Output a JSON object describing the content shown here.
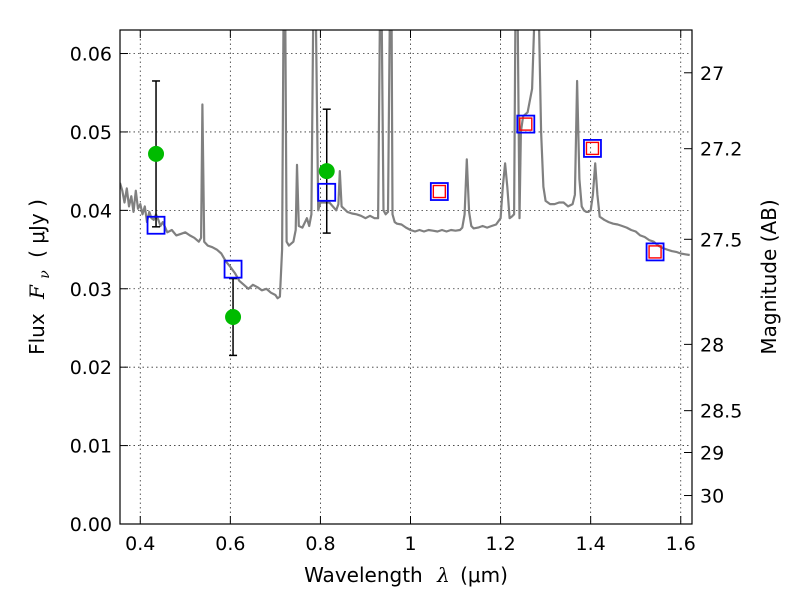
{
  "chart_data": {
    "type": "scatter",
    "xlabel_text": "Wavelength",
    "xlabel_symbol": "λ",
    "xlabel_unit": "(μm)",
    "ylabel_text": "Flux",
    "ylabel_symbol": "F",
    "ylabel_sub": "ν",
    "ylabel_unit": "( μJy )",
    "y2label": "Magnitude (AB)",
    "xlim": [
      0.355,
      1.625
    ],
    "ylim": [
      0.0,
      0.063
    ],
    "x_ticks": [
      0.4,
      0.6,
      0.8,
      1.0,
      1.2,
      1.4,
      1.6
    ],
    "x_tick_labels": [
      "0.4",
      "0.6",
      "0.8",
      "1",
      "1.2",
      "1.4",
      "1.6"
    ],
    "y_ticks": [
      0.0,
      0.01,
      0.02,
      0.03,
      0.04,
      0.05,
      0.06
    ],
    "y_tick_labels": [
      "0.00",
      "0.01",
      "0.02",
      "0.03",
      "0.04",
      "0.05",
      "0.06"
    ],
    "y2_ticks": [
      27,
      27.2,
      27.5,
      28,
      28.5,
      29,
      30
    ],
    "y2_tick_labels": [
      "27",
      "27.2",
      "27.5",
      "28",
      "28.5",
      "29",
      "30"
    ],
    "grid": true,
    "colors": {
      "spectrum": "#808080",
      "observed": "#00bb00",
      "model_band": "#0000ff",
      "model_inner": "#ff0000"
    },
    "spectrum": [
      [
        0.355,
        0.0435
      ],
      [
        0.36,
        0.0425
      ],
      [
        0.365,
        0.041
      ],
      [
        0.37,
        0.0428
      ],
      [
        0.375,
        0.0405
      ],
      [
        0.38,
        0.0418
      ],
      [
        0.385,
        0.0398
      ],
      [
        0.39,
        0.0425
      ],
      [
        0.395,
        0.0402
      ],
      [
        0.4,
        0.0408
      ],
      [
        0.405,
        0.0395
      ],
      [
        0.41,
        0.0405
      ],
      [
        0.415,
        0.0385
      ],
      [
        0.42,
        0.0398
      ],
      [
        0.425,
        0.039
      ],
      [
        0.43,
        0.0388
      ],
      [
        0.435,
        0.0395
      ],
      [
        0.44,
        0.0388
      ],
      [
        0.445,
        0.038
      ],
      [
        0.45,
        0.0385
      ],
      [
        0.46,
        0.0372
      ],
      [
        0.47,
        0.0375
      ],
      [
        0.48,
        0.0368
      ],
      [
        0.49,
        0.037
      ],
      [
        0.5,
        0.0372
      ],
      [
        0.51,
        0.0368
      ],
      [
        0.52,
        0.0365
      ],
      [
        0.53,
        0.036
      ],
      [
        0.535,
        0.0365
      ],
      [
        0.538,
        0.0535
      ],
      [
        0.542,
        0.036
      ],
      [
        0.55,
        0.0355
      ],
      [
        0.56,
        0.0353
      ],
      [
        0.57,
        0.035
      ],
      [
        0.58,
        0.0345
      ],
      [
        0.59,
        0.0335
      ],
      [
        0.6,
        0.0328
      ],
      [
        0.61,
        0.032
      ],
      [
        0.62,
        0.031
      ],
      [
        0.63,
        0.0305
      ],
      [
        0.64,
        0.03
      ],
      [
        0.65,
        0.0305
      ],
      [
        0.66,
        0.0302
      ],
      [
        0.67,
        0.0298
      ],
      [
        0.68,
        0.03
      ],
      [
        0.69,
        0.0295
      ],
      [
        0.7,
        0.0292
      ],
      [
        0.705,
        0.0288
      ],
      [
        0.71,
        0.029
      ],
      [
        0.715,
        0.035
      ],
      [
        0.718,
        0.0645
      ],
      [
        0.722,
        0.0645
      ],
      [
        0.725,
        0.036
      ],
      [
        0.73,
        0.0355
      ],
      [
        0.74,
        0.036
      ],
      [
        0.745,
        0.0375
      ],
      [
        0.748,
        0.0458
      ],
      [
        0.752,
        0.038
      ],
      [
        0.76,
        0.0378
      ],
      [
        0.77,
        0.039
      ],
      [
        0.775,
        0.038
      ],
      [
        0.78,
        0.0395
      ],
      [
        0.784,
        0.0645
      ],
      [
        0.79,
        0.0645
      ],
      [
        0.795,
        0.04
      ],
      [
        0.8,
        0.041
      ],
      [
        0.82,
        0.041
      ],
      [
        0.835,
        0.04
      ],
      [
        0.84,
        0.0408
      ],
      [
        0.843,
        0.045
      ],
      [
        0.847,
        0.0405
      ],
      [
        0.86,
        0.0398
      ],
      [
        0.87,
        0.0396
      ],
      [
        0.88,
        0.0395
      ],
      [
        0.89,
        0.0393
      ],
      [
        0.9,
        0.039
      ],
      [
        0.91,
        0.0393
      ],
      [
        0.92,
        0.039
      ],
      [
        0.928,
        0.039
      ],
      [
        0.932,
        0.0645
      ],
      [
        0.936,
        0.0645
      ],
      [
        0.94,
        0.04
      ],
      [
        0.945,
        0.0395
      ],
      [
        0.95,
        0.0398
      ],
      [
        0.954,
        0.0645
      ],
      [
        0.958,
        0.0645
      ],
      [
        0.96,
        0.0395
      ],
      [
        0.965,
        0.0385
      ],
      [
        0.97,
        0.0383
      ],
      [
        0.98,
        0.0382
      ],
      [
        0.99,
        0.0378
      ],
      [
        1.0,
        0.0375
      ],
      [
        1.01,
        0.0373
      ],
      [
        1.02,
        0.0375
      ],
      [
        1.03,
        0.0373
      ],
      [
        1.04,
        0.0375
      ],
      [
        1.05,
        0.0374
      ],
      [
        1.06,
        0.0373
      ],
      [
        1.07,
        0.0375
      ],
      [
        1.08,
        0.0373
      ],
      [
        1.09,
        0.0375
      ],
      [
        1.1,
        0.0374
      ],
      [
        1.11,
        0.0375
      ],
      [
        1.115,
        0.0378
      ],
      [
        1.12,
        0.0395
      ],
      [
        1.125,
        0.0465
      ],
      [
        1.13,
        0.0398
      ],
      [
        1.135,
        0.038
      ],
      [
        1.14,
        0.0377
      ],
      [
        1.15,
        0.0378
      ],
      [
        1.16,
        0.038
      ],
      [
        1.17,
        0.0378
      ],
      [
        1.18,
        0.038
      ],
      [
        1.19,
        0.0382
      ],
      [
        1.2,
        0.039
      ],
      [
        1.205,
        0.043
      ],
      [
        1.21,
        0.046
      ],
      [
        1.215,
        0.043
      ],
      [
        1.22,
        0.039
      ],
      [
        1.225,
        0.0392
      ],
      [
        1.23,
        0.0395
      ],
      [
        1.233,
        0.0645
      ],
      [
        1.238,
        0.0645
      ],
      [
        1.242,
        0.039
      ],
      [
        1.245,
        0.05
      ],
      [
        1.25,
        0.052
      ],
      [
        1.26,
        0.0525
      ],
      [
        1.27,
        0.0555
      ],
      [
        1.275,
        0.0645
      ],
      [
        1.285,
        0.0645
      ],
      [
        1.29,
        0.05
      ],
      [
        1.295,
        0.043
      ],
      [
        1.3,
        0.0412
      ],
      [
        1.31,
        0.0408
      ],
      [
        1.32,
        0.0408
      ],
      [
        1.33,
        0.041
      ],
      [
        1.34,
        0.041
      ],
      [
        1.35,
        0.0405
      ],
      [
        1.36,
        0.0408
      ],
      [
        1.365,
        0.042
      ],
      [
        1.37,
        0.0565
      ],
      [
        1.375,
        0.044
      ],
      [
        1.38,
        0.0405
      ],
      [
        1.385,
        0.04
      ],
      [
        1.39,
        0.0398
      ],
      [
        1.395,
        0.0398
      ],
      [
        1.4,
        0.04
      ],
      [
        1.405,
        0.042
      ],
      [
        1.41,
        0.046
      ],
      [
        1.415,
        0.042
      ],
      [
        1.42,
        0.0392
      ],
      [
        1.43,
        0.0388
      ],
      [
        1.44,
        0.0385
      ],
      [
        1.45,
        0.0383
      ],
      [
        1.46,
        0.0382
      ],
      [
        1.47,
        0.038
      ],
      [
        1.48,
        0.0378
      ],
      [
        1.49,
        0.0375
      ],
      [
        1.5,
        0.0373
      ],
      [
        1.51,
        0.0368
      ],
      [
        1.52,
        0.0366
      ],
      [
        1.53,
        0.0362
      ],
      [
        1.54,
        0.036
      ],
      [
        1.55,
        0.0355
      ],
      [
        1.56,
        0.0352
      ],
      [
        1.57,
        0.035
      ],
      [
        1.58,
        0.0348
      ],
      [
        1.59,
        0.0347
      ],
      [
        1.6,
        0.0345
      ],
      [
        1.61,
        0.0344
      ],
      [
        1.62,
        0.0343
      ]
    ],
    "observed": [
      {
        "x": 0.435,
        "y": 0.0472,
        "yerr": 0.0093
      },
      {
        "x": 0.606,
        "y": 0.0264,
        "yerr": 0.0049
      },
      {
        "x": 0.814,
        "y": 0.045,
        "yerr": 0.0079
      }
    ],
    "model_bands": [
      {
        "x": 0.435,
        "y": 0.0381,
        "inner": false
      },
      {
        "x": 0.606,
        "y": 0.0325,
        "inner": false
      },
      {
        "x": 0.814,
        "y": 0.0423,
        "inner": false
      },
      {
        "x": 1.064,
        "y": 0.0424,
        "inner": true
      },
      {
        "x": 1.256,
        "y": 0.051,
        "inner": true
      },
      {
        "x": 1.404,
        "y": 0.0479,
        "inner": true
      },
      {
        "x": 1.543,
        "y": 0.0347,
        "inner": true
      }
    ]
  }
}
